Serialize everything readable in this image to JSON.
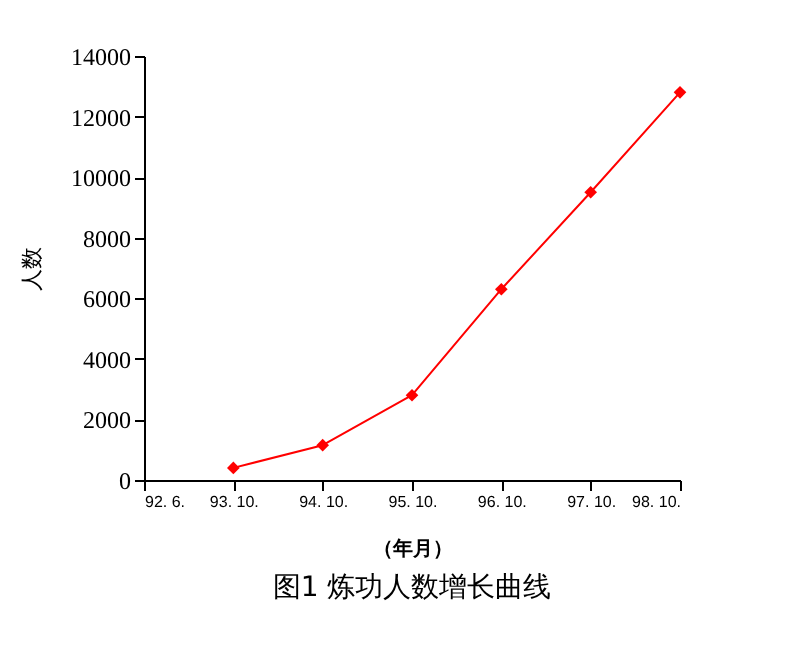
{
  "chart_data": {
    "type": "line",
    "title": "图1 炼功人数增长曲线",
    "xlabel": "（年月）",
    "ylabel": "人数",
    "categories": [
      "92. 6.",
      "93. 10.",
      "94. 10.",
      "95. 10.",
      "96. 10.",
      "97. 10.",
      "98. 10."
    ],
    "series": [
      {
        "color": "#ff0000",
        "values": [
          null,
          400,
          1150,
          2800,
          6300,
          9500,
          12800
        ]
      }
    ],
    "ylim": [
      0,
      14000
    ],
    "yticks": [
      0,
      2000,
      4000,
      6000,
      8000,
      10000,
      12000,
      14000
    ],
    "grid": false,
    "legend": false,
    "marker": "diamond",
    "line_style": "solid"
  }
}
